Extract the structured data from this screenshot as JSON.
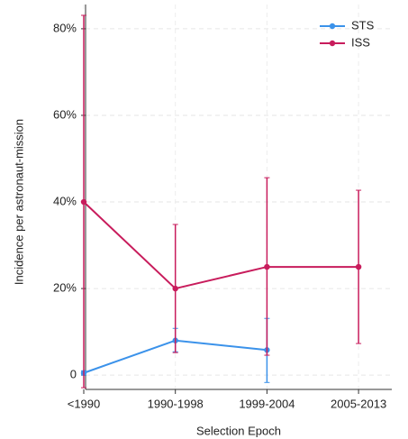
{
  "chart_data": {
    "type": "line",
    "x_label": "Selection Epoch",
    "y_label": "Incidence per astronaut-mission",
    "categories": [
      "<1990",
      "1990-1998",
      "1999-2004",
      "2005-2013"
    ],
    "series": [
      {
        "name": "STS",
        "color": "#3b92ea",
        "values": [
          0.5,
          8,
          5.8,
          null
        ],
        "lower": [
          0,
          5.4,
          -1.7,
          null
        ],
        "upper": [
          1,
          10.8,
          13.1,
          null
        ]
      },
      {
        "name": "ISS",
        "color": "#c81c5c",
        "values": [
          40,
          20,
          25,
          25
        ],
        "lower": [
          -2.9,
          5.2,
          4.6,
          7.3
        ],
        "upper": [
          83.1,
          34.8,
          45.6,
          42.7
        ]
      }
    ],
    "ylim": [
      -3.3,
      85.6
    ],
    "yticks": [
      0,
      {
        "value": 20,
        "label": "20%"
      },
      {
        "value": 40,
        "label": "40%"
      },
      {
        "value": 60,
        "label": "60%"
      },
      {
        "value": 80,
        "label": "80%"
      }
    ],
    "grid": true,
    "legend": "upper right"
  }
}
